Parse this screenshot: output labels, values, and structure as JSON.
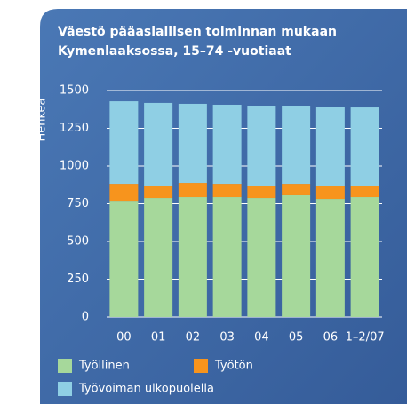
{
  "chart_data": {
    "type": "stacked-bar",
    "title_lines": [
      "Väestö pääasiallisen toiminnan mukaan",
      "Kymenlaaksossa, 15–74 -vuotiaat"
    ],
    "ylabel": "Henkeä",
    "categories": [
      "00",
      "01",
      "02",
      "03",
      "04",
      "05",
      "06",
      "1–2/07"
    ],
    "series": [
      {
        "name": "Työllinen",
        "color": "#a6d89b",
        "values": [
          770,
          788,
          794,
          794,
          788,
          806,
          782,
          794
        ]
      },
      {
        "name": "Työtön",
        "color": "#f7941d",
        "values": [
          112,
          82,
          94,
          88,
          82,
          76,
          88,
          71
        ]
      },
      {
        "name": "Työvoiman ulkopuolella",
        "color": "#8fcfe4",
        "values": [
          547,
          548,
          524,
          524,
          530,
          518,
          524,
          523
        ]
      }
    ],
    "ylim": [
      0,
      1500
    ],
    "yticks": [
      0,
      250,
      500,
      750,
      1000,
      1250,
      1500
    ],
    "grid": true
  }
}
